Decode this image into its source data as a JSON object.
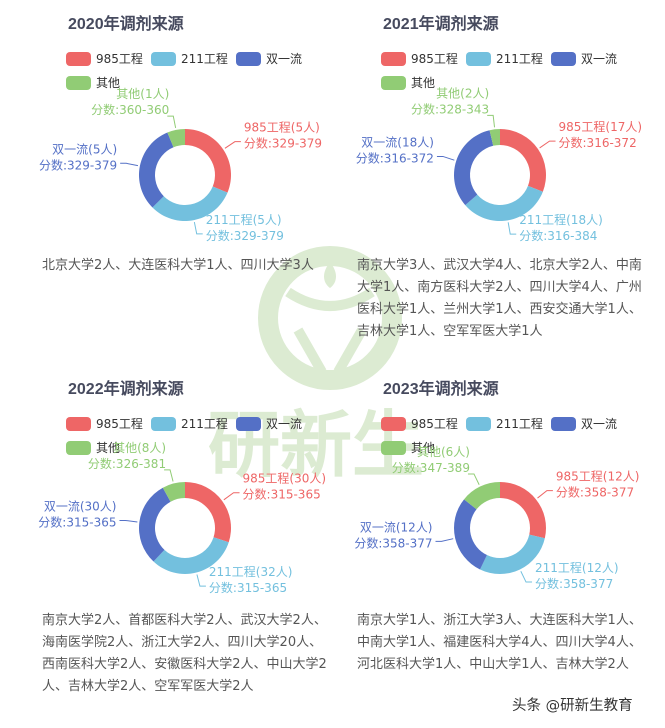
{
  "watermark": {
    "text": "研新生",
    "color": "#dcebd2"
  },
  "footer": {
    "credit": "头条 @研新生教育"
  },
  "legend_items": [
    {
      "key": "985",
      "label": "985工程",
      "color": "#ee6666"
    },
    {
      "key": "211",
      "label": "211工程",
      "color": "#73c0de"
    },
    {
      "key": "syl",
      "label": "双一流",
      "color": "#5470c6"
    },
    {
      "key": "other",
      "label": "其他",
      "color": "#91cc75"
    }
  ],
  "panels": [
    {
      "title": "2020年调剂来源",
      "description": "北京大学2人、大连医科大学1人、四川大学3人",
      "slices": [
        {
          "label": "985工程(5人)",
          "score": "分数:329-379"
        },
        {
          "label": "211工程(5人)",
          "score": "分数:329-379"
        },
        {
          "label": "双一流(5人)",
          "score": "分数:329-379"
        },
        {
          "label": "其他(1人)",
          "score": "分数:360-360"
        }
      ]
    },
    {
      "title": "2021年调剂来源",
      "description": "南京大学3人、武汉大学4人、北京大学2人、中南大学1人、南方医科大学2人、四川大学4人、广州医科大学1人、兰州大学1人、西安交通大学1人、吉林大学1人、空军军医大学1人",
      "slices": [
        {
          "label": "985工程(17人)",
          "score": "分数:316-372"
        },
        {
          "label": "211工程(18人)",
          "score": "分数:316-384"
        },
        {
          "label": "双一流(18人)",
          "score": "分数:316-372"
        },
        {
          "label": "其他(2人)",
          "score": "分数:328-343"
        }
      ]
    },
    {
      "title": "2022年调剂来源",
      "description": "南京大学2人、首都医科大学2人、武汉大学2人、海南医学院2人、浙江大学2人、四川大学20人、西南医科大学2人、安徽医科大学2人、中山大学2人、吉林大学2人、空军军医大学2人",
      "slices": [
        {
          "label": "985工程(30人)",
          "score": "分数:315-365"
        },
        {
          "label": "211工程(32人)",
          "score": "分数:315-365"
        },
        {
          "label": "双一流(30人)",
          "score": "分数:315-365"
        },
        {
          "label": "其他(8人)",
          "score": "分数:326-381"
        }
      ]
    },
    {
      "title": "2023年调剂来源",
      "description": "南京大学1人、浙江大学3人、大连医科大学1人、中南大学1人、福建医科大学4人、四川大学4人、河北医科大学1人、中山大学1人、吉林大学2人",
      "slices": [
        {
          "label": "985工程(12人)",
          "score": "分数:358-377"
        },
        {
          "label": "211工程(12人)",
          "score": "分数:358-377"
        },
        {
          "label": "双一流(12人)",
          "score": "分数:358-377"
        },
        {
          "label": "其他(6人)",
          "score": "分数:347-389"
        }
      ]
    }
  ],
  "chart_data": [
    {
      "type": "pie",
      "title": "2020年调剂来源",
      "categories": [
        "985工程",
        "211工程",
        "双一流",
        "其他"
      ],
      "values": [
        5,
        5,
        5,
        1
      ],
      "score_ranges": [
        "329-379",
        "329-379",
        "329-379",
        "360-360"
      ],
      "legend_position": "top-left",
      "donut": true
    },
    {
      "type": "pie",
      "title": "2021年调剂来源",
      "categories": [
        "985工程",
        "211工程",
        "双一流",
        "其他"
      ],
      "values": [
        17,
        18,
        18,
        2
      ],
      "score_ranges": [
        "316-372",
        "316-384",
        "316-372",
        "328-343"
      ],
      "legend_position": "top-left",
      "donut": true
    },
    {
      "type": "pie",
      "title": "2022年调剂来源",
      "categories": [
        "985工程",
        "211工程",
        "双一流",
        "其他"
      ],
      "values": [
        30,
        32,
        30,
        8
      ],
      "score_ranges": [
        "315-365",
        "315-365",
        "315-365",
        "326-381"
      ],
      "legend_position": "top-left",
      "donut": true
    },
    {
      "type": "pie",
      "title": "2023年调剂来源",
      "categories": [
        "985工程",
        "211工程",
        "双一流",
        "其他"
      ],
      "values": [
        12,
        12,
        12,
        6
      ],
      "score_ranges": [
        "358-377",
        "358-377",
        "358-377",
        "347-389"
      ],
      "legend_position": "top-left",
      "donut": true
    }
  ]
}
